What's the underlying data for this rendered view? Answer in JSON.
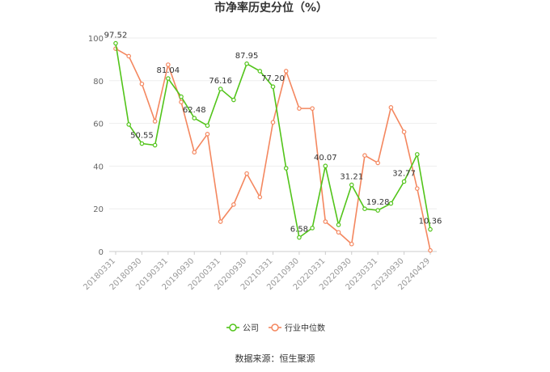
{
  "chart_data": {
    "type": "line",
    "title": "市净率历史分位（%）",
    "ylim": [
      0,
      100
    ],
    "yticks": [
      0,
      20,
      40,
      60,
      80,
      100
    ],
    "xtick_labels": [
      "20180331",
      "20180930",
      "20190331",
      "20190930",
      "20200331",
      "20200930",
      "20210331",
      "20210930",
      "20220331",
      "20220930",
      "20230331",
      "20230930",
      "20240429"
    ],
    "series": [
      {
        "name": "公司",
        "color": "#52c41a",
        "values": [
          97.52,
          59.5,
          50.55,
          49.8,
          81.04,
          72.5,
          62.48,
          59.0,
          76.16,
          71.0,
          87.95,
          84.5,
          77.2,
          39.0,
          6.58,
          11.0,
          40.07,
          12.5,
          31.21,
          20.0,
          19.28,
          22.5,
          32.77,
          45.5,
          10.36
        ],
        "labels": [
          "97.52",
          null,
          "50.55",
          null,
          "81.04",
          null,
          "62.48",
          null,
          "76.16",
          null,
          "87.95",
          null,
          "77.20",
          null,
          "6.58",
          null,
          "40.07",
          null,
          "31.21",
          null,
          "19.28",
          null,
          "32.77",
          null,
          "10.36"
        ]
      },
      {
        "name": "行业中位数",
        "color": "#f4875f",
        "values": [
          95.0,
          91.5,
          78.5,
          61.0,
          87.5,
          70.0,
          46.5,
          55.0,
          14.0,
          22.0,
          36.5,
          25.5,
          60.5,
          84.5,
          67.0,
          67.0,
          14.0,
          9.0,
          3.5,
          45.0,
          41.5,
          67.5,
          56.0,
          29.5,
          0.5
        ]
      }
    ],
    "legend_position": "bottom"
  },
  "source_text": "数据来源：恒生聚源"
}
